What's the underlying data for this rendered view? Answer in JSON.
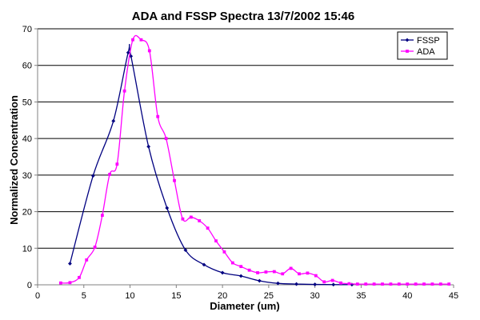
{
  "chart_data": {
    "type": "line",
    "title": "ADA and FSSP Spectra 13/7/2002 15:46",
    "xlabel": "Diameter (um)",
    "ylabel": "Normalized Concentration",
    "xlim": [
      0,
      45
    ],
    "ylim": [
      0,
      70
    ],
    "xticks": [
      0,
      5,
      10,
      15,
      20,
      25,
      30,
      35,
      40,
      45
    ],
    "yticks": [
      0,
      10,
      20,
      30,
      40,
      50,
      60,
      70
    ],
    "grid": "horizontal",
    "legend_position": "top-right",
    "series": [
      {
        "name": "FSSP",
        "color": "#000080",
        "marker": "diamond",
        "x": [
          3.5,
          6,
          8.2,
          9.8,
          10.1,
          12,
          14,
          16,
          18,
          20,
          22,
          24,
          26,
          28,
          30,
          32,
          34
        ],
        "y": [
          5.8,
          29.8,
          44.8,
          63.5,
          62.5,
          37.8,
          21,
          9.5,
          5.5,
          3.3,
          2.4,
          1.1,
          0.4,
          0.2,
          0.1,
          0.05,
          0.05
        ]
      },
      {
        "name": "ADA",
        "color": "#ff00ff",
        "marker": "square",
        "x": [
          2.5,
          3.5,
          4.5,
          5.3,
          6.2,
          7,
          7.8,
          8.6,
          9.4,
          10.3,
          11.2,
          12.1,
          13,
          13.9,
          14.8,
          15.7,
          16.6,
          17.5,
          18.4,
          19.3,
          20.2,
          21.1,
          22,
          22.9,
          23.8,
          24.7,
          25.6,
          26.5,
          27.4,
          28.3,
          29.2,
          30.1,
          31,
          31.9,
          32.8,
          33.7,
          34.6,
          35.5,
          36.4,
          37.3,
          38.2,
          39.1,
          40,
          40.9,
          41.8,
          42.7,
          43.6,
          44.5
        ],
        "y": [
          0.5,
          0.6,
          2,
          6.8,
          10.3,
          19,
          30.2,
          33,
          53,
          67,
          67,
          64,
          46,
          40,
          28.5,
          18,
          18.5,
          17.5,
          15.5,
          12,
          9,
          6,
          5,
          4,
          3.3,
          3.5,
          3.6,
          3,
          4.5,
          3,
          3.2,
          2.5,
          0.8,
          1.2,
          0.5,
          0.3,
          0.2,
          0.2,
          0.2,
          0.2,
          0.2,
          0.2,
          0.2,
          0.2,
          0.2,
          0.2,
          0.2,
          0.2
        ]
      }
    ]
  }
}
